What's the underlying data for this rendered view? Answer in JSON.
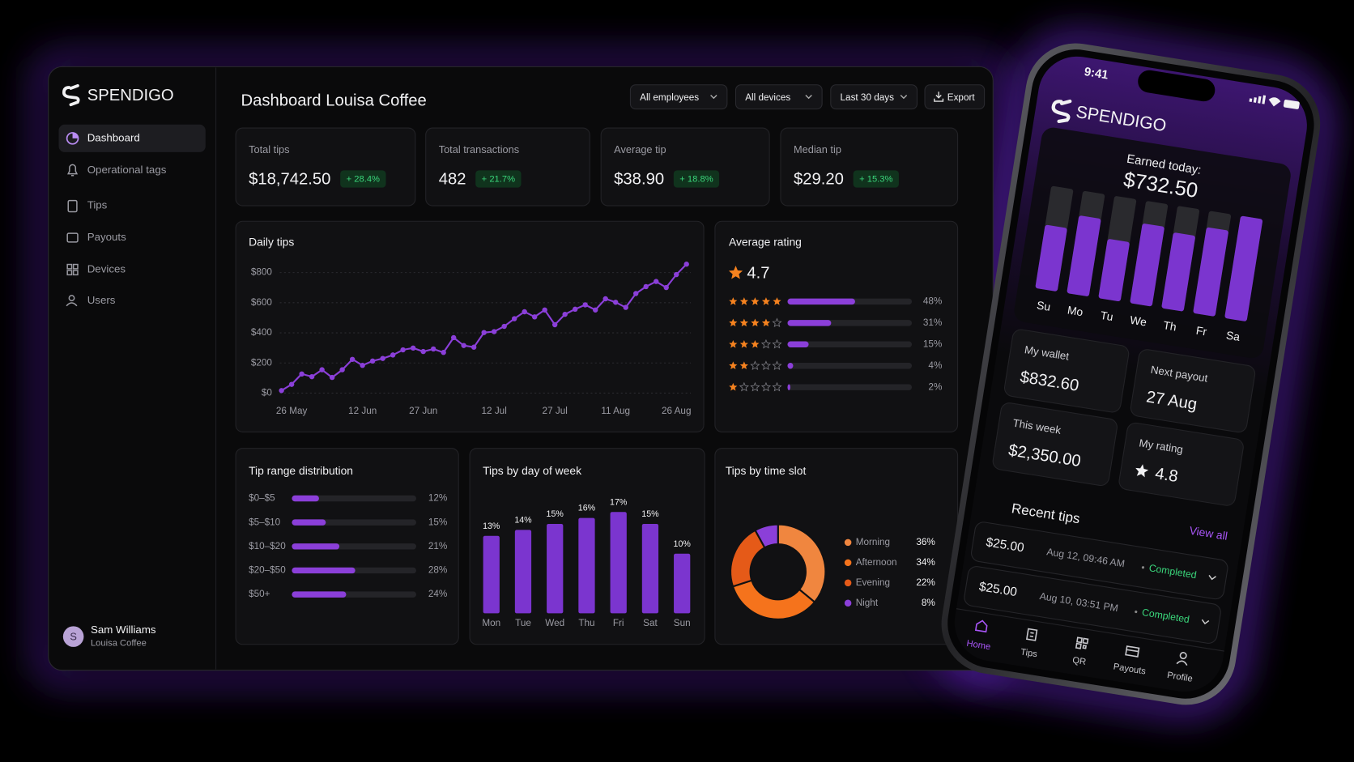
{
  "sidebar": {
    "brand": "SPENDIGO",
    "nav": [
      "Dashboard",
      "Operational tags",
      "Tips",
      "Payouts",
      "Devices",
      "Users"
    ],
    "user": {
      "initial": "S",
      "name": "Sam Williams",
      "org": "Louisa Coffee"
    }
  },
  "header": {
    "title": "Dashboard Louisa Coffee",
    "filters": [
      "All employees",
      "All devices",
      "Last 30 days"
    ],
    "export": "Export"
  },
  "kpis": [
    {
      "label": "Total tips",
      "value": "$18,742.50",
      "change": "+ 28.4%"
    },
    {
      "label": "Total transactions",
      "value": "482",
      "change": "+ 21.7%"
    },
    {
      "label": "Average tip",
      "value": "$38.90",
      "change": "+ 18.8%"
    },
    {
      "label": "Median tip",
      "value": "$29.20",
      "change": "+ 15.3%"
    }
  ],
  "daily_tips": {
    "type": "line",
    "title": "Daily tips",
    "categories": [
      null,
      "26 May",
      null,
      null,
      null,
      null,
      null,
      null,
      "12 Jun",
      null,
      null,
      null,
      null,
      null,
      "27 Jun",
      null,
      null,
      null,
      null,
      null,
      null,
      "12 Jul",
      null,
      null,
      null,
      null,
      null,
      "27 Jul",
      null,
      null,
      null,
      null,
      null,
      "11 Aug",
      null,
      null,
      null,
      null,
      null,
      "26 Aug",
      null
    ],
    "values": [
      17,
      58,
      127,
      109,
      155,
      104,
      155,
      224,
      184,
      213,
      230,
      253,
      287,
      299,
      276,
      293,
      270,
      368,
      316,
      305,
      402,
      408,
      443,
      494,
      540,
      506,
      552,
      454,
      523,
      557,
      586,
      552,
      626,
      603,
      569,
      661,
      707,
      741,
      701,
      787,
      856
    ],
    "ylim": [
      0,
      860
    ],
    "yticks": [
      {
        "value": 0,
        "label": "$0"
      },
      {
        "value": 200,
        "label": "$200"
      },
      {
        "value": 400,
        "label": "$400"
      },
      {
        "value": 600,
        "label": "$600"
      },
      {
        "value": 800,
        "label": "$800"
      }
    ],
    "grid": true,
    "color": "#8b3fd9"
  },
  "average_rating": {
    "title": "Average rating",
    "score": "4.7",
    "stars": [
      5,
      4,
      3,
      2,
      1
    ],
    "values": [
      48,
      31,
      15,
      4,
      2
    ],
    "value_labels": [
      "48%",
      "31%",
      "15%",
      "4%",
      "2%"
    ],
    "color": "#8b3fd9",
    "star_color": "#f5821f"
  },
  "tip_range": {
    "title": "Tip range distribution",
    "categories": [
      "$0–$5",
      "$5–$10",
      "$10–$20",
      "$20–$50",
      "$50+"
    ],
    "values": [
      12,
      15,
      21,
      28,
      24
    ],
    "value_labels": [
      "12%",
      "15%",
      "21%",
      "28%",
      "24%"
    ],
    "color": "#8b3fd9"
  },
  "day_of_week": {
    "title": "Tips by day of week",
    "categories": [
      "Mon",
      "Tue",
      "Wed",
      "Thu",
      "Fri",
      "Sat",
      "Sun"
    ],
    "values": [
      13,
      14,
      15,
      16,
      17,
      15,
      10
    ],
    "value_labels": [
      "13%",
      "14%",
      "15%",
      "16%",
      "17%",
      "15%",
      "10%"
    ],
    "color": "#7b35cf"
  },
  "time_slot": {
    "type": "pie",
    "title": "Tips by time slot",
    "categories": [
      "Morning",
      "Afternoon",
      "Evening",
      "Night"
    ],
    "values": [
      36,
      34,
      22,
      8
    ],
    "value_labels": [
      "36%",
      "34%",
      "22%",
      "8%"
    ],
    "colors": [
      "#f0863f",
      "#f5731c",
      "#e55a18",
      "#8b3fd9"
    ]
  },
  "phone": {
    "time": "9:41",
    "brand": "SPENDIGO",
    "earned_label": "Earned today:",
    "earned": "$732.50",
    "week_chart": {
      "categories": [
        "Su",
        "Mo",
        "Tu",
        "We",
        "Th",
        "Fr",
        "Sa"
      ],
      "values": [
        62,
        76,
        58,
        78,
        74,
        84,
        100
      ],
      "color": "#7b35cf"
    },
    "cards": [
      {
        "label": "My wallet",
        "value": "$832.60"
      },
      {
        "label": "Next payout",
        "value": "27 Aug"
      },
      {
        "label": "This week",
        "value": "$2,350.00"
      },
      {
        "label": "My rating",
        "value": "4.8"
      }
    ],
    "recent_title": "Recent tips",
    "view_all": "View all",
    "tips": [
      {
        "amount": "$25.00",
        "time": "Aug 12, 09:46 AM",
        "status": "Completed"
      },
      {
        "amount": "$25.00",
        "time": "Aug 10, 03:51 PM",
        "status": "Completed"
      }
    ],
    "nav": [
      "Home",
      "Tips",
      "QR",
      "Payouts",
      "Profile"
    ]
  }
}
